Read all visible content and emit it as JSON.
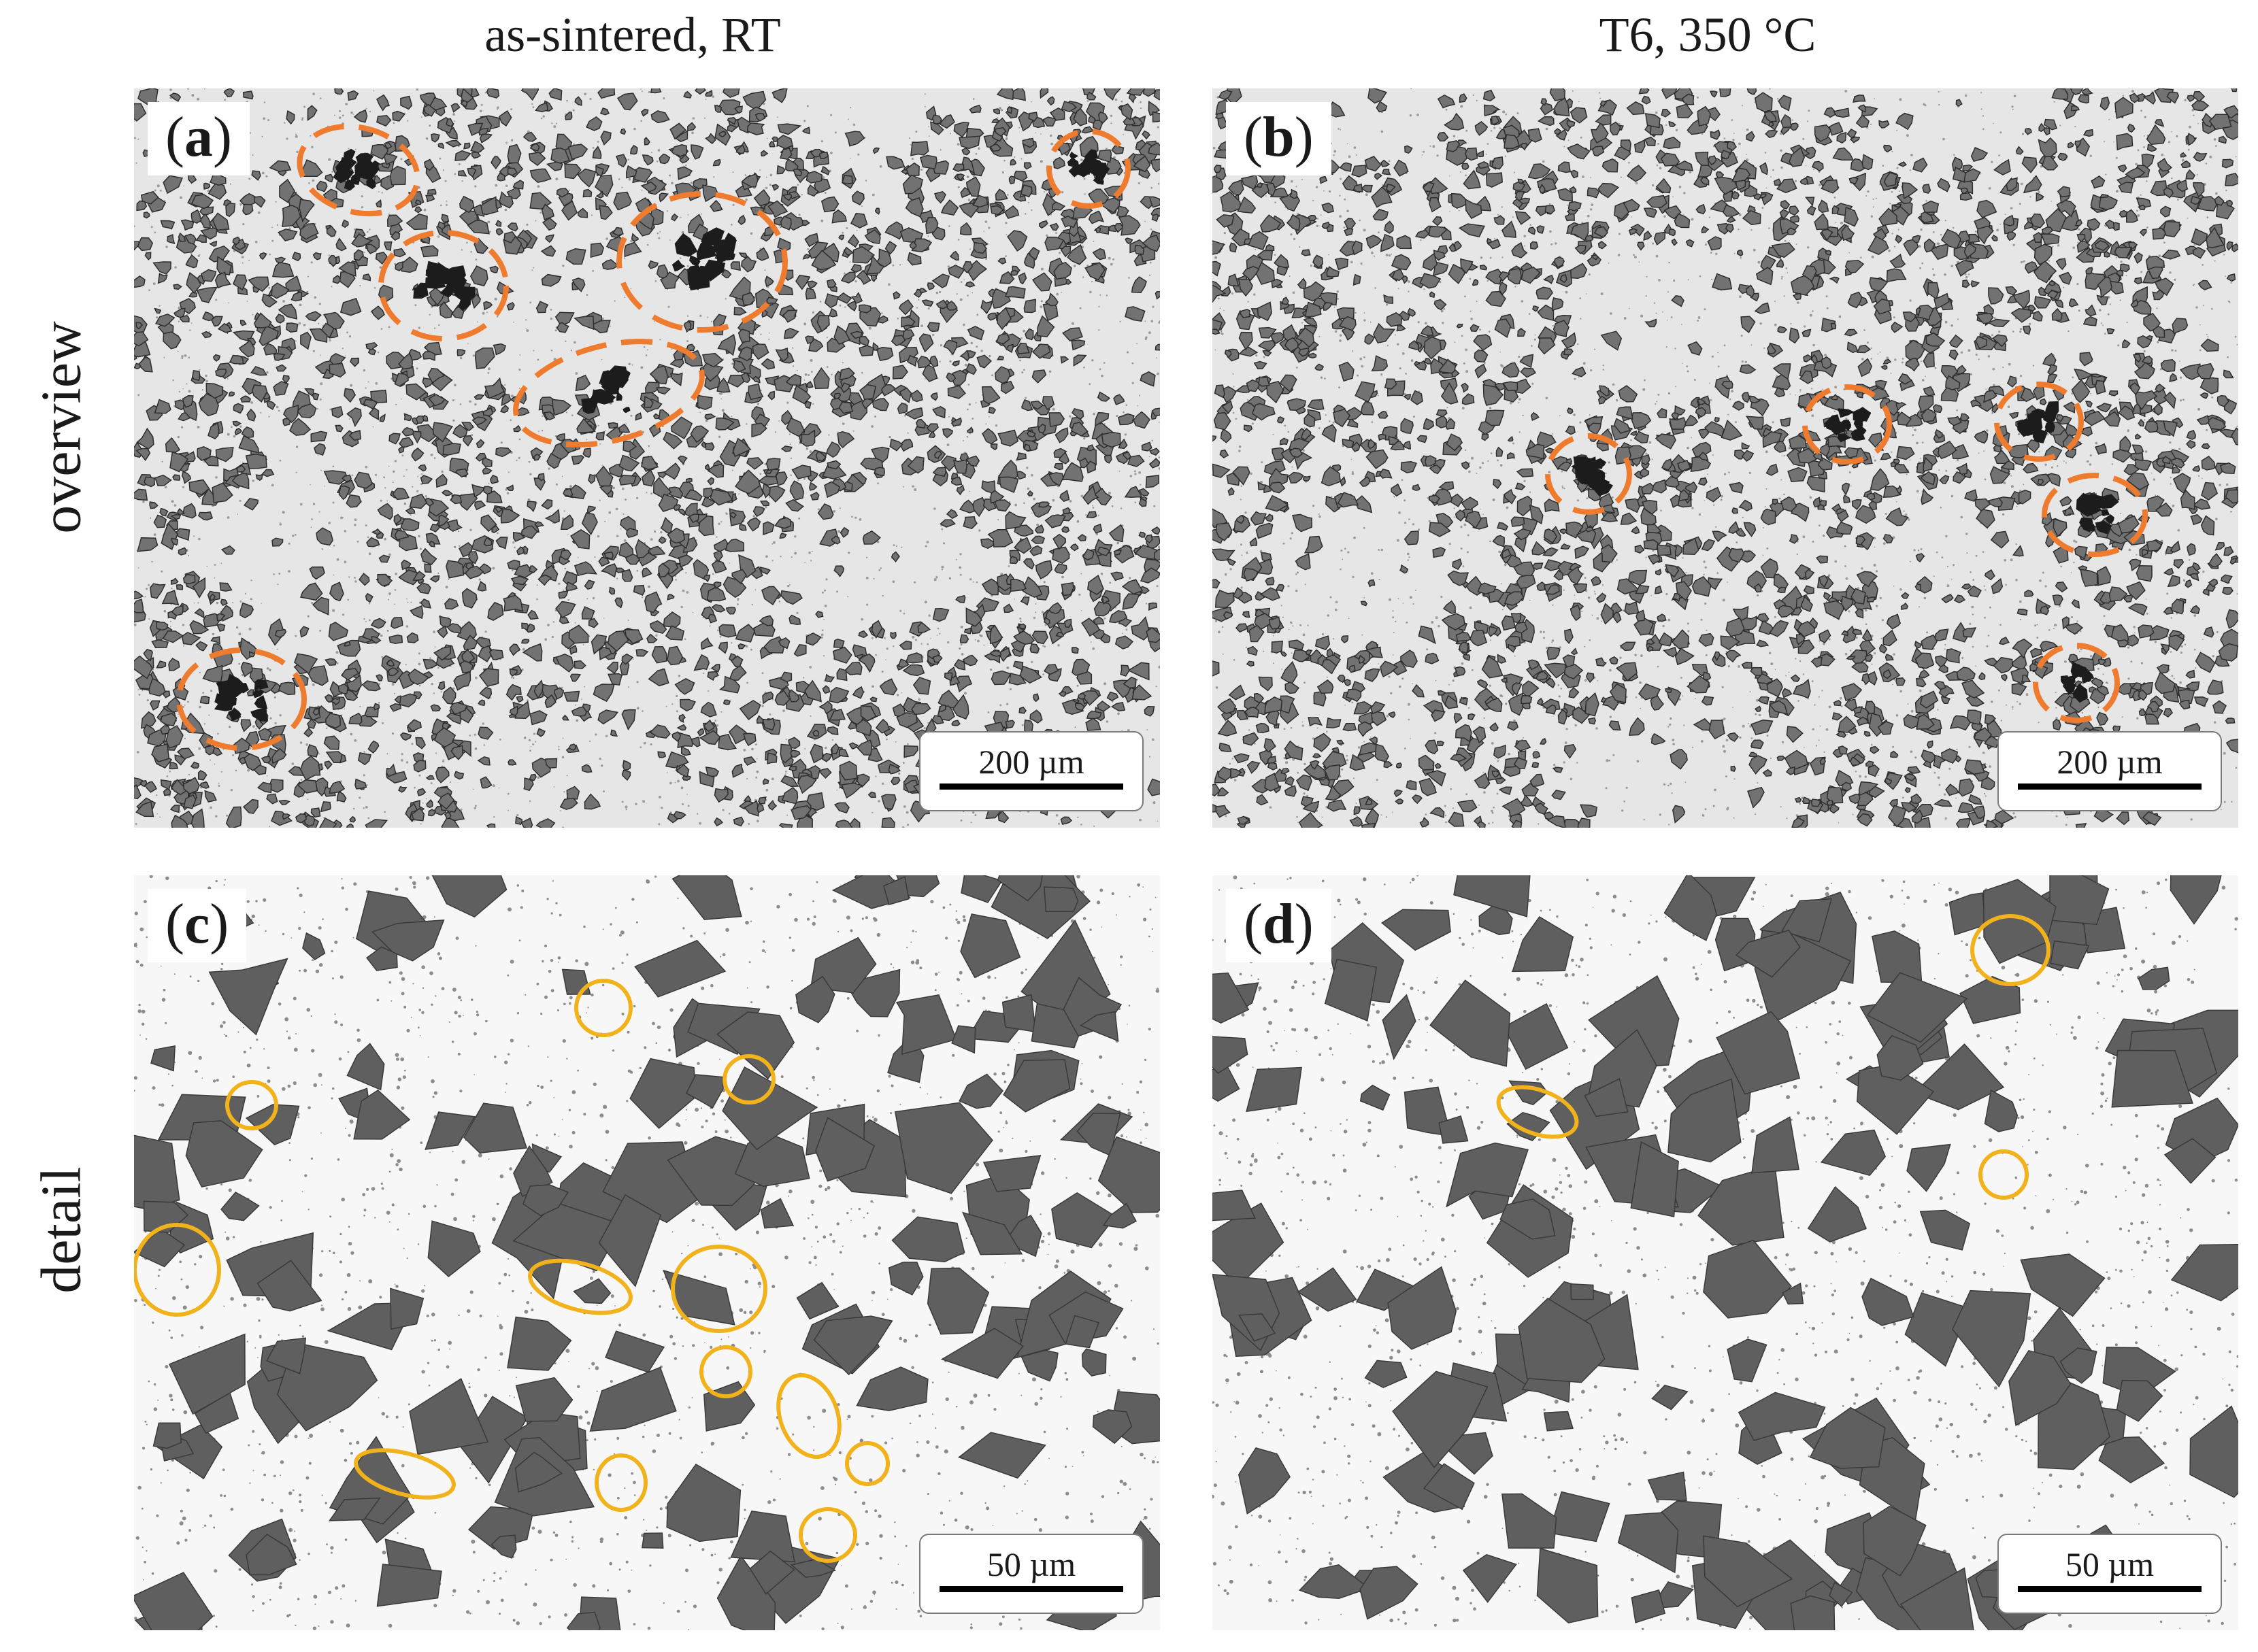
{
  "columns": {
    "left": "as-sintered, RT",
    "right": "T6, 350 °C"
  },
  "rows": {
    "top": "overview",
    "bottom": "detail"
  },
  "panels": {
    "a": {
      "letter": "a",
      "scalebar": "200 µm"
    },
    "b": {
      "letter": "b",
      "scalebar": "200 µm"
    },
    "c": {
      "letter": "c",
      "scalebar": "50 µm"
    },
    "d": {
      "letter": "d",
      "scalebar": "50 µm"
    }
  },
  "colors": {
    "overview_marker": "#ef7b2f",
    "detail_marker": "#f2b21b",
    "particle": "#6b6b6b",
    "matrix": "#e9e9e9"
  }
}
